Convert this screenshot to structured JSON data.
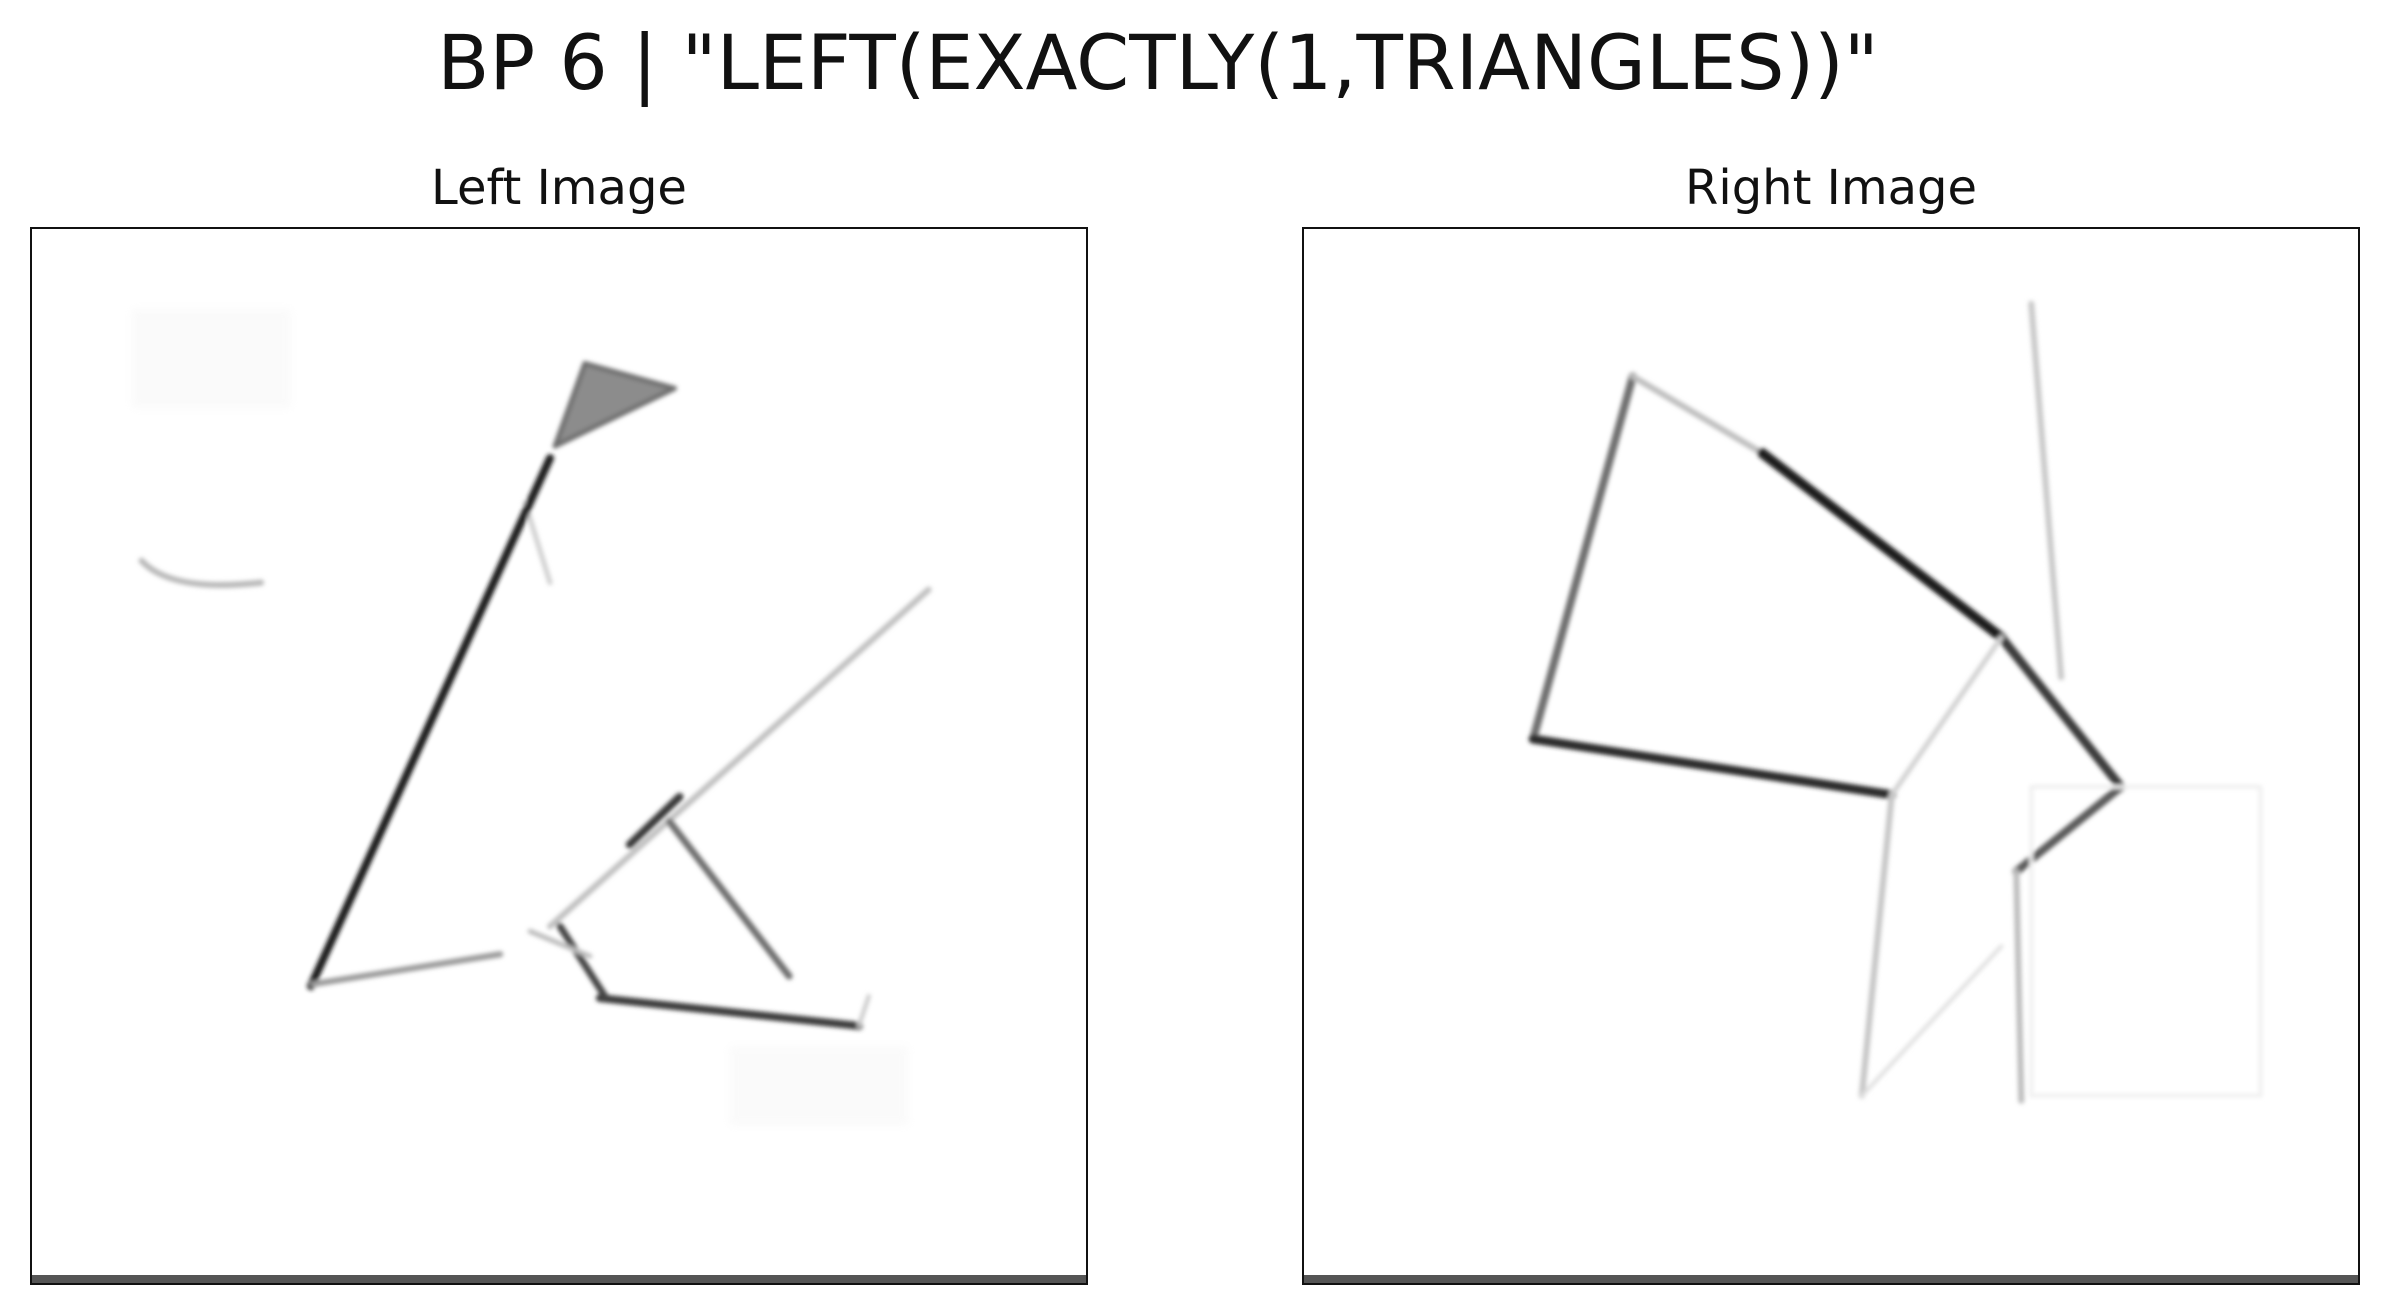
{
  "figure": {
    "title": "BP 6 | \"LEFT(EXACTLY(1,TRIANGLES))\""
  },
  "panels": [
    {
      "title": "Left Image"
    },
    {
      "title": "Right Image"
    }
  ],
  "colors": {
    "background": "#ffffff",
    "frame": "#111111",
    "stroke_dark": "#1a1a1a",
    "stroke_mid": "#6e6e6e",
    "stroke_light": "#c4c4c4",
    "fill_triangle": "#8c8c8c",
    "bottom_band": "#555555"
  }
}
